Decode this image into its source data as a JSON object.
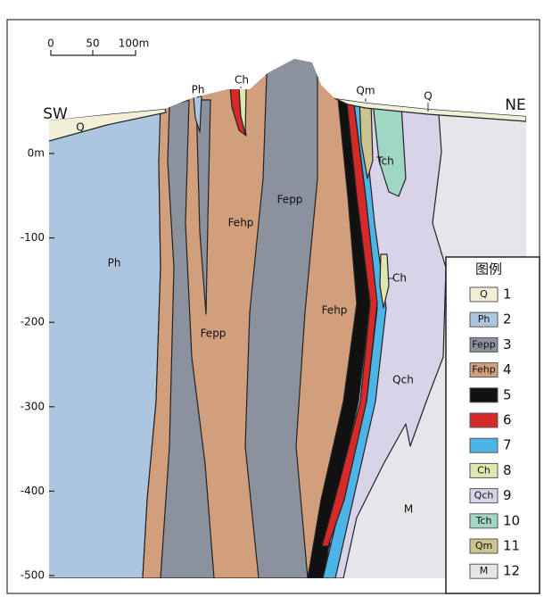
{
  "scale_bar": {
    "labels": [
      "0",
      "50",
      "100m"
    ]
  },
  "directions": {
    "left": "SW",
    "right": "NE"
  },
  "depth_axis": {
    "ticks": [
      {
        "value": 0,
        "label": "0m"
      },
      {
        "value": -100,
        "label": "-100"
      },
      {
        "value": -200,
        "label": "-200"
      },
      {
        "value": -300,
        "label": "-300"
      },
      {
        "value": -400,
        "label": "-400"
      },
      {
        "value": -500,
        "label": "-500"
      }
    ]
  },
  "section_labels": [
    "Q",
    "Ph",
    "Ch",
    "Qm",
    "Q",
    "Ph",
    "Fepp",
    "Fehp",
    "Fepp",
    "Fehp",
    "Tch",
    "Ch",
    "Qch",
    "M"
  ],
  "legend": {
    "title": "图例",
    "items": [
      {
        "label": "Q",
        "number": "1",
        "color": "#f1efd8"
      },
      {
        "label": "Ph",
        "number": "2",
        "color": "#adc6e0"
      },
      {
        "label": "Fepp",
        "number": "3",
        "color": "#8b929e"
      },
      {
        "label": "Fehp",
        "number": "4",
        "color": "#d29f7c"
      },
      {
        "number": "5",
        "color": "#111111"
      },
      {
        "number": "6",
        "color": "#d42a2a"
      },
      {
        "number": "7",
        "color": "#4db4e8"
      },
      {
        "label": "Ch",
        "number": "8",
        "color": "#dfe6b0"
      },
      {
        "label": "Qch",
        "number": "9",
        "color": "#d8d3e8"
      },
      {
        "label": "Tch",
        "number": "10",
        "color": "#9fd6c4"
      },
      {
        "label": "Qm",
        "number": "11",
        "color": "#cdc38f"
      },
      {
        "label": "M",
        "number": "12",
        "color": "#e5e6ea"
      }
    ]
  }
}
